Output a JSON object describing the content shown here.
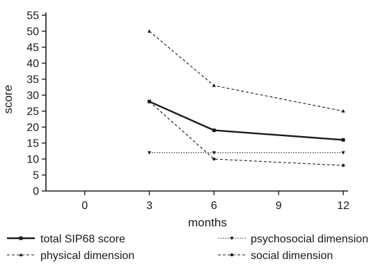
{
  "chart_data": {
    "type": "line",
    "title": "",
    "xlabel": "months",
    "ylabel": "score",
    "x": [
      3,
      6,
      12
    ],
    "xticks": [
      "0",
      "3",
      "6",
      "9",
      "12"
    ],
    "xlim": [
      -1.8,
      13.2
    ],
    "yticks": [
      "0",
      "5",
      "10",
      "15",
      "20",
      "25",
      "30",
      "35",
      "40",
      "45",
      "50",
      "55"
    ],
    "ylim": [
      0,
      55
    ],
    "grid": false,
    "legend_position": "bottom",
    "series": [
      {
        "name": "total SIP68 score",
        "values": [
          28,
          19,
          16
        ],
        "style": "solid-bold",
        "marker": "square",
        "color": "#1a1a1a"
      },
      {
        "name": "physical dimension",
        "values": [
          50,
          33,
          25
        ],
        "style": "dashed",
        "marker": "triangle-up",
        "color": "#1a1a1a"
      },
      {
        "name": "psychosocial dimension",
        "values": [
          12,
          12,
          12
        ],
        "style": "dotted",
        "marker": "triangle-down",
        "color": "#1a1a1a"
      },
      {
        "name": "social dimension",
        "values": [
          28,
          10,
          8
        ],
        "style": "dashed",
        "marker": "circle",
        "color": "#1a1a1a"
      }
    ]
  }
}
